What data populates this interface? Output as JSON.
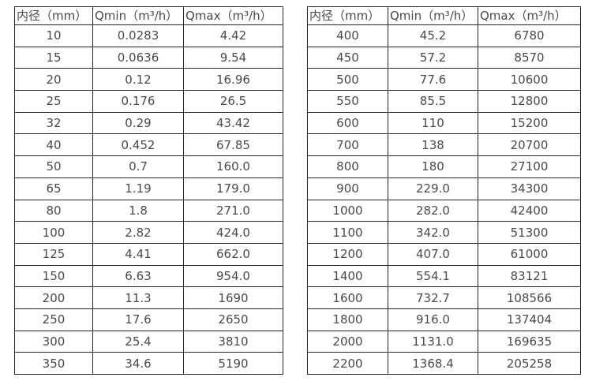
{
  "page": {
    "background": "#ffffff",
    "text_color": "#4a4a4a",
    "border_color": "#262626"
  },
  "tables": [
    {
      "name": "flow-table-small-diameters",
      "headers": [
        "内径（mm）",
        "Qmin（m³/h）",
        "Qmax（m³/h）"
      ],
      "rows": [
        [
          "10",
          "0.0283",
          "4.42"
        ],
        [
          "15",
          "0.0636",
          "9.54"
        ],
        [
          "20",
          "0.12",
          "16.96"
        ],
        [
          "25",
          "0.176",
          "26.5"
        ],
        [
          "32",
          "0.29",
          "43.42"
        ],
        [
          "40",
          "0.452",
          "67.85"
        ],
        [
          "50",
          "0.7",
          "160.0"
        ],
        [
          "65",
          "1.19",
          "179.0"
        ],
        [
          "80",
          "1.8",
          "271.0"
        ],
        [
          "100",
          "2.82",
          "424.0"
        ],
        [
          "125",
          "4.41",
          "662.0"
        ],
        [
          "150",
          "6.63",
          "954.0"
        ],
        [
          "200",
          "11.3",
          "1690"
        ],
        [
          "250",
          "17.6",
          "2650"
        ],
        [
          "300",
          "25.4",
          "3810"
        ],
        [
          "350",
          "34.6",
          "5190"
        ]
      ]
    },
    {
      "name": "flow-table-large-diameters",
      "headers": [
        "内径（mm）",
        "Qmin（m³/h）",
        "Qmax（m³/h）"
      ],
      "rows": [
        [
          "400",
          "45.2",
          "6780"
        ],
        [
          "450",
          "57.2",
          "8570"
        ],
        [
          "500",
          "77.6",
          "10600"
        ],
        [
          "550",
          "85.5",
          "12800"
        ],
        [
          "600",
          "110",
          "15200"
        ],
        [
          "700",
          "138",
          "20700"
        ],
        [
          "800",
          "180",
          "27100"
        ],
        [
          "900",
          "229.0",
          "34300"
        ],
        [
          "1000",
          "282.0",
          "42400"
        ],
        [
          "1100",
          "342.0",
          "51300"
        ],
        [
          "1200",
          "407.0",
          "61000"
        ],
        [
          "1400",
          "554.1",
          "83121"
        ],
        [
          "1600",
          "732.7",
          "108566"
        ],
        [
          "1800",
          "916.0",
          "137404"
        ],
        [
          "2000",
          "1131.0",
          "169635"
        ],
        [
          "2200",
          "1368.4",
          "205258"
        ]
      ]
    }
  ]
}
